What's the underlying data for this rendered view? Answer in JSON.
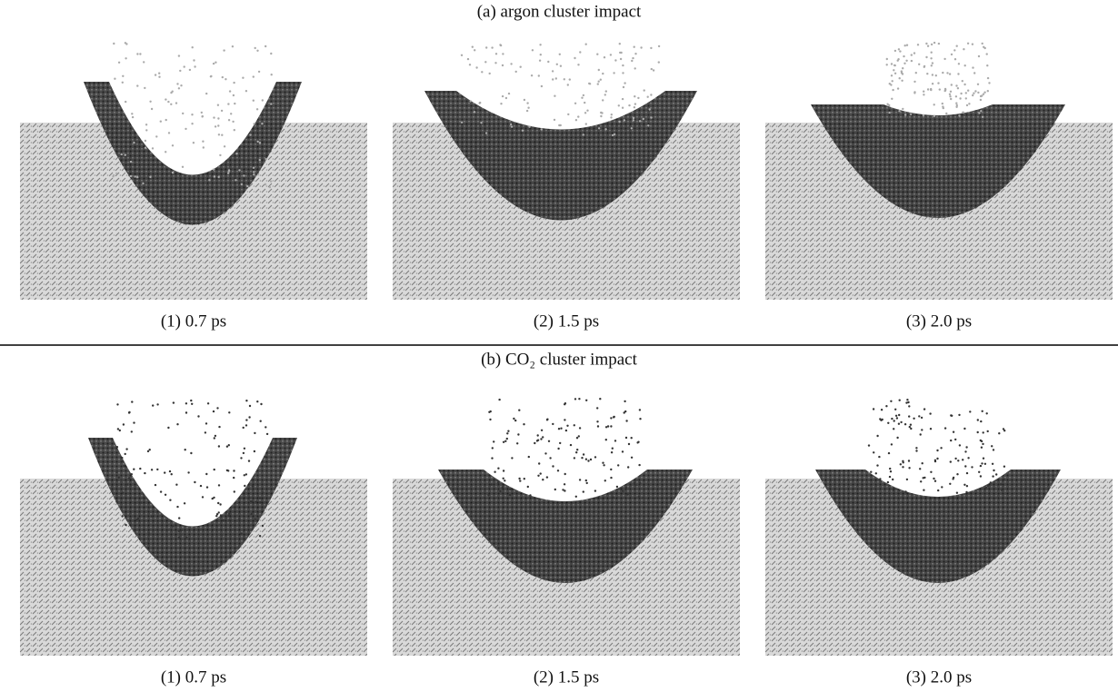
{
  "figure": {
    "sections": [
      {
        "title": "(a) argon cluster impact",
        "panels": [
          {
            "caption": "(1) 0.7 ps"
          },
          {
            "caption": "(2) 1.5 ps"
          },
          {
            "caption": "(3) 2.0 ps"
          }
        ]
      },
      {
        "title": "(b) CO₂ cluster impact",
        "panels": [
          {
            "caption": "(1) 0.7 ps"
          },
          {
            "caption": "(2) 1.5 ps"
          },
          {
            "caption": "(3) 2.0 ps"
          }
        ]
      }
    ]
  }
}
